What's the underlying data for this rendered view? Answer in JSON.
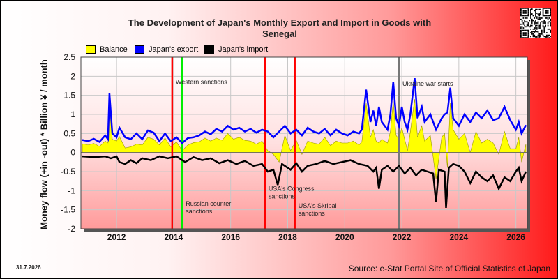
{
  "title_line1": "The Development of Japan's Monthly Export and Import in Goods with",
  "title_line2": "Senegal",
  "legend": [
    {
      "label": "Balance",
      "color": "#ffff00"
    },
    {
      "label": "Japan's export",
      "color": "#0000ff"
    },
    {
      "label": "Japan's import",
      "color": "#000000"
    }
  ],
  "footer": {
    "date": "31.7.2026",
    "source": "Source: e-Stat Portal Site of Official Statistics of Japan"
  },
  "chart_data": {
    "type": "line",
    "ylabel": "Money flow (+in -out) * Billion ¥ / month",
    "xlabel": "",
    "xlim": [
      2010.75,
      2026.4
    ],
    "ylim": [
      -2,
      2.5
    ],
    "yticks": [
      "-2",
      "-1.5",
      "-1",
      "-0.5",
      "0",
      "0.5",
      "1",
      "1.5",
      "2",
      "2.5"
    ],
    "xticks": [
      "2012",
      "2014",
      "2016",
      "2018",
      "2020",
      "2022",
      "2024",
      "2026"
    ],
    "grid": true,
    "legend_position": "top-left",
    "colors": {
      "balance": "#ffff00",
      "export": "#0000ff",
      "import": "#000000"
    },
    "export": [
      [
        2010.8,
        0.33
      ],
      [
        2011.0,
        0.3
      ],
      [
        2011.2,
        0.36
      ],
      [
        2011.4,
        0.28
      ],
      [
        2011.6,
        0.45
      ],
      [
        2011.7,
        0.35
      ],
      [
        2011.75,
        1.55
      ],
      [
        2011.85,
        0.5
      ],
      [
        2012.0,
        0.4
      ],
      [
        2012.1,
        0.65
      ],
      [
        2012.3,
        0.4
      ],
      [
        2012.5,
        0.35
      ],
      [
        2012.7,
        0.5
      ],
      [
        2012.9,
        0.35
      ],
      [
        2013.1,
        0.58
      ],
      [
        2013.3,
        0.52
      ],
      [
        2013.5,
        0.3
      ],
      [
        2013.7,
        0.5
      ],
      [
        2013.9,
        0.3
      ],
      [
        2014.1,
        0.4
      ],
      [
        2014.3,
        0.25
      ],
      [
        2014.5,
        0.38
      ],
      [
        2014.7,
        0.4
      ],
      [
        2014.9,
        0.45
      ],
      [
        2015.1,
        0.55
      ],
      [
        2015.3,
        0.48
      ],
      [
        2015.5,
        0.62
      ],
      [
        2015.7,
        0.55
      ],
      [
        2015.9,
        0.7
      ],
      [
        2016.1,
        0.6
      ],
      [
        2016.3,
        0.65
      ],
      [
        2016.5,
        0.55
      ],
      [
        2016.7,
        0.62
      ],
      [
        2016.9,
        0.52
      ],
      [
        2017.1,
        0.6
      ],
      [
        2017.3,
        0.55
      ],
      [
        2017.5,
        0.4
      ],
      [
        2017.7,
        0.55
      ],
      [
        2017.9,
        0.7
      ],
      [
        2018.1,
        0.5
      ],
      [
        2018.3,
        0.6
      ],
      [
        2018.5,
        0.45
      ],
      [
        2018.7,
        0.65
      ],
      [
        2018.9,
        0.55
      ],
      [
        2019.1,
        0.5
      ],
      [
        2019.3,
        0.62
      ],
      [
        2019.5,
        0.45
      ],
      [
        2019.7,
        0.6
      ],
      [
        2019.9,
        0.5
      ],
      [
        2020.1,
        0.45
      ],
      [
        2020.3,
        0.55
      ],
      [
        2020.5,
        0.5
      ],
      [
        2020.6,
        0.6
      ],
      [
        2020.75,
        1.65
      ],
      [
        2020.9,
        0.8
      ],
      [
        2021.0,
        1.1
      ],
      [
        2021.1,
        0.7
      ],
      [
        2021.2,
        1.2
      ],
      [
        2021.3,
        0.8
      ],
      [
        2021.5,
        0.6
      ],
      [
        2021.6,
        1.0
      ],
      [
        2021.7,
        1.85
      ],
      [
        2021.8,
        0.9
      ],
      [
        2021.9,
        0.7
      ],
      [
        2022.0,
        1.2
      ],
      [
        2022.1,
        0.8
      ],
      [
        2022.2,
        0.6
      ],
      [
        2022.3,
        1.0
      ],
      [
        2022.45,
        1.95
      ],
      [
        2022.55,
        0.9
      ],
      [
        2022.7,
        1.2
      ],
      [
        2022.8,
        0.8
      ],
      [
        2023.0,
        1.0
      ],
      [
        2023.2,
        0.6
      ],
      [
        2023.4,
        0.9
      ],
      [
        2023.5,
        1.0
      ],
      [
        2023.6,
        1.05
      ],
      [
        2023.7,
        1.7
      ],
      [
        2023.8,
        0.9
      ],
      [
        2024.0,
        0.7
      ],
      [
        2024.2,
        1.0
      ],
      [
        2024.4,
        0.8
      ],
      [
        2024.6,
        1.05
      ],
      [
        2024.8,
        0.9
      ],
      [
        2025.0,
        1.1
      ],
      [
        2025.2,
        0.85
      ],
      [
        2025.4,
        0.9
      ],
      [
        2025.6,
        1.2
      ],
      [
        2025.8,
        0.85
      ],
      [
        2026.0,
        0.6
      ],
      [
        2026.1,
        0.8
      ],
      [
        2026.2,
        0.5
      ],
      [
        2026.35,
        0.72
      ]
    ],
    "import": [
      [
        2010.8,
        -0.1
      ],
      [
        2011.2,
        -0.12
      ],
      [
        2011.6,
        -0.1
      ],
      [
        2011.8,
        -0.15
      ],
      [
        2012.0,
        -0.1
      ],
      [
        2012.1,
        -0.25
      ],
      [
        2012.3,
        -0.3
      ],
      [
        2012.5,
        -0.2
      ],
      [
        2012.7,
        -0.28
      ],
      [
        2012.9,
        -0.15
      ],
      [
        2013.2,
        -0.2
      ],
      [
        2013.5,
        -0.1
      ],
      [
        2013.8,
        -0.15
      ],
      [
        2014.1,
        -0.1
      ],
      [
        2014.4,
        -0.25
      ],
      [
        2014.7,
        -0.12
      ],
      [
        2015.0,
        -0.2
      ],
      [
        2015.3,
        -0.15
      ],
      [
        2015.6,
        -0.28
      ],
      [
        2015.9,
        -0.2
      ],
      [
        2016.2,
        -0.3
      ],
      [
        2016.5,
        -0.22
      ],
      [
        2016.8,
        -0.35
      ],
      [
        2017.1,
        -0.3
      ],
      [
        2017.3,
        -0.5
      ],
      [
        2017.5,
        -0.45
      ],
      [
        2017.65,
        -0.85
      ],
      [
        2017.8,
        -0.3
      ],
      [
        2018.1,
        -0.45
      ],
      [
        2018.3,
        -0.28
      ],
      [
        2018.5,
        -0.5
      ],
      [
        2018.7,
        -0.35
      ],
      [
        2019.0,
        -0.3
      ],
      [
        2019.3,
        -0.22
      ],
      [
        2019.6,
        -0.3
      ],
      [
        2019.9,
        -0.25
      ],
      [
        2020.2,
        -0.2
      ],
      [
        2020.5,
        -0.3
      ],
      [
        2020.8,
        -0.35
      ],
      [
        2021.0,
        -0.5
      ],
      [
        2021.1,
        -0.4
      ],
      [
        2021.2,
        -0.95
      ],
      [
        2021.3,
        -0.45
      ],
      [
        2021.5,
        -0.35
      ],
      [
        2021.7,
        -0.5
      ],
      [
        2021.9,
        -0.35
      ],
      [
        2022.1,
        -0.55
      ],
      [
        2022.3,
        -0.4
      ],
      [
        2022.5,
        -0.6
      ],
      [
        2022.7,
        -0.45
      ],
      [
        2022.9,
        -0.5
      ],
      [
        2023.1,
        -0.55
      ],
      [
        2023.2,
        -1.3
      ],
      [
        2023.3,
        -0.45
      ],
      [
        2023.5,
        -0.5
      ],
      [
        2023.55,
        -1.45
      ],
      [
        2023.65,
        -0.4
      ],
      [
        2023.8,
        -0.3
      ],
      [
        2024.0,
        -0.35
      ],
      [
        2024.2,
        -0.5
      ],
      [
        2024.4,
        -0.8
      ],
      [
        2024.6,
        -0.5
      ],
      [
        2024.8,
        -0.65
      ],
      [
        2025.0,
        -0.75
      ],
      [
        2025.2,
        -0.6
      ],
      [
        2025.4,
        -0.95
      ],
      [
        2025.6,
        -0.65
      ],
      [
        2025.8,
        -0.75
      ],
      [
        2026.0,
        -0.5
      ],
      [
        2026.1,
        -0.4
      ],
      [
        2026.2,
        -0.75
      ],
      [
        2026.35,
        -0.5
      ]
    ],
    "balance": [
      [
        2010.8,
        0.23
      ],
      [
        2011.0,
        0.2
      ],
      [
        2011.2,
        0.24
      ],
      [
        2011.4,
        0.16
      ],
      [
        2011.6,
        0.3
      ],
      [
        2011.7,
        0.25
      ],
      [
        2011.75,
        1.45
      ],
      [
        2011.85,
        0.35
      ],
      [
        2012.0,
        0.3
      ],
      [
        2012.1,
        0.42
      ],
      [
        2012.3,
        0.12
      ],
      [
        2012.5,
        0.15
      ],
      [
        2012.7,
        0.22
      ],
      [
        2012.9,
        0.2
      ],
      [
        2013.1,
        0.4
      ],
      [
        2013.3,
        0.35
      ],
      [
        2013.5,
        0.2
      ],
      [
        2013.7,
        0.38
      ],
      [
        2013.9,
        0.15
      ],
      [
        2014.1,
        0.28
      ],
      [
        2014.3,
        0.05
      ],
      [
        2014.5,
        0.2
      ],
      [
        2014.7,
        0.26
      ],
      [
        2014.9,
        0.28
      ],
      [
        2015.1,
        0.38
      ],
      [
        2015.3,
        0.3
      ],
      [
        2015.5,
        0.38
      ],
      [
        2015.7,
        0.32
      ],
      [
        2015.9,
        0.5
      ],
      [
        2016.1,
        0.35
      ],
      [
        2016.3,
        0.4
      ],
      [
        2016.5,
        0.32
      ],
      [
        2016.7,
        0.3
      ],
      [
        2016.9,
        0.22
      ],
      [
        2017.1,
        0.3
      ],
      [
        2017.3,
        0.05
      ],
      [
        2017.5,
        -0.05
      ],
      [
        2017.7,
        -0.25
      ],
      [
        2017.9,
        0.45
      ],
      [
        2018.1,
        0.05
      ],
      [
        2018.3,
        0.32
      ],
      [
        2018.5,
        -0.05
      ],
      [
        2018.7,
        0.3
      ],
      [
        2018.9,
        0.25
      ],
      [
        2019.1,
        0.22
      ],
      [
        2019.3,
        0.4
      ],
      [
        2019.5,
        0.18
      ],
      [
        2019.7,
        0.3
      ],
      [
        2019.9,
        0.25
      ],
      [
        2020.1,
        0.25
      ],
      [
        2020.3,
        0.3
      ],
      [
        2020.5,
        0.2
      ],
      [
        2020.6,
        0.28
      ],
      [
        2020.75,
        1.3
      ],
      [
        2020.9,
        0.4
      ],
      [
        2021.0,
        0.6
      ],
      [
        2021.1,
        0.3
      ],
      [
        2021.2,
        0.25
      ],
      [
        2021.3,
        0.35
      ],
      [
        2021.5,
        0.25
      ],
      [
        2021.6,
        0.55
      ],
      [
        2021.7,
        1.35
      ],
      [
        2021.8,
        0.45
      ],
      [
        2021.9,
        0.35
      ],
      [
        2022.0,
        0.65
      ],
      [
        2022.1,
        0.35
      ],
      [
        2022.2,
        0.05
      ],
      [
        2022.3,
        0.55
      ],
      [
        2022.45,
        1.4
      ],
      [
        2022.55,
        0.4
      ],
      [
        2022.7,
        0.7
      ],
      [
        2022.8,
        0.3
      ],
      [
        2023.0,
        0.45
      ],
      [
        2023.2,
        -0.7
      ],
      [
        2023.4,
        0.4
      ],
      [
        2023.5,
        0.5
      ],
      [
        2023.6,
        -0.4
      ],
      [
        2023.7,
        1.3
      ],
      [
        2023.8,
        0.6
      ],
      [
        2024.0,
        0.35
      ],
      [
        2024.2,
        0.5
      ],
      [
        2024.4,
        0.0
      ],
      [
        2024.6,
        0.55
      ],
      [
        2024.8,
        0.25
      ],
      [
        2025.0,
        0.35
      ],
      [
        2025.2,
        0.25
      ],
      [
        2025.4,
        -0.05
      ],
      [
        2025.6,
        0.55
      ],
      [
        2025.8,
        0.1
      ],
      [
        2026.0,
        0.1
      ],
      [
        2026.1,
        0.4
      ],
      [
        2026.2,
        -0.25
      ],
      [
        2026.35,
        0.22
      ]
    ],
    "events": [
      {
        "x": 2013.95,
        "label": "",
        "color": "#ff0000"
      },
      {
        "x": 2014.3,
        "label": "",
        "color": "#00ee00"
      },
      {
        "x": 2017.2,
        "label": "",
        "color": "#ff0000"
      },
      {
        "x": 2018.25,
        "label": "",
        "color": "#ff0000"
      },
      {
        "x": 2021.9,
        "label": "",
        "color": "#777777"
      }
    ],
    "annotations": [
      {
        "x": 2014.0,
        "y": 1.8,
        "lines": [
          "Western sanctions"
        ]
      },
      {
        "x": 2014.35,
        "y": -1.4,
        "lines": [
          "Russian counter",
          "sanctions"
        ]
      },
      {
        "x": 2017.25,
        "y": -1.0,
        "lines": [
          "USA's Congress",
          "sanctions"
        ]
      },
      {
        "x": 2018.3,
        "y": -1.45,
        "lines": [
          "USA's Skripal",
          "sanctions"
        ]
      },
      {
        "x": 2021.95,
        "y": 1.75,
        "lines": [
          "Ukraine war starts"
        ]
      }
    ]
  }
}
